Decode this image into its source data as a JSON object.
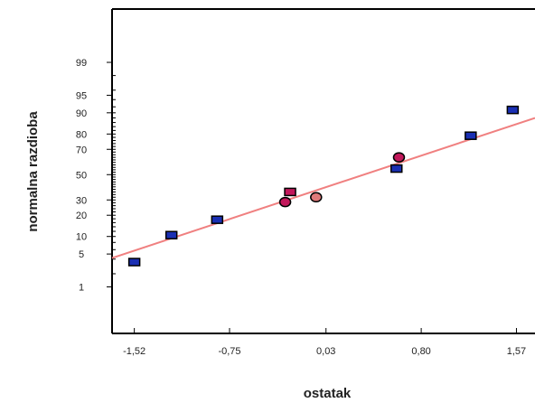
{
  "chart_data": {
    "type": "scatter",
    "title": "",
    "xlabel": "ostatak",
    "ylabel": "normalna razdioba",
    "x_ticks": [
      {
        "value": -1.52,
        "label": "-1,52"
      },
      {
        "value": -0.75,
        "label": "-0,75"
      },
      {
        "value": 0.03,
        "label": "0,03"
      },
      {
        "value": 0.8,
        "label": "0,80"
      },
      {
        "value": 1.57,
        "label": "1,57"
      }
    ],
    "y_ticks": [
      {
        "value": 1,
        "label": "1"
      },
      {
        "value": 5,
        "label": "5"
      },
      {
        "value": 10,
        "label": "10"
      },
      {
        "value": 20,
        "label": "20"
      },
      {
        "value": 30,
        "label": "30"
      },
      {
        "value": 50,
        "label": "50"
      },
      {
        "value": 70,
        "label": "70"
      },
      {
        "value": 80,
        "label": "80"
      },
      {
        "value": 90,
        "label": "90"
      },
      {
        "value": 95,
        "label": "95"
      },
      {
        "value": 99,
        "label": "99"
      }
    ],
    "x_scale": "linear",
    "y_scale": "normal-probability",
    "xlim": [
      -1.7,
      1.72
    ],
    "ylim": [
      0.05,
      99.97
    ],
    "grid": false,
    "points": [
      {
        "x": -1.52,
        "y": 3.5,
        "marker": "square",
        "color": "#1a2fb3"
      },
      {
        "x": -1.22,
        "y": 10.5,
        "marker": "square",
        "color": "#1a2fb3"
      },
      {
        "x": -0.85,
        "y": 17.5,
        "marker": "square",
        "color": "#1a2fb3"
      },
      {
        "x": -0.26,
        "y": 36.0,
        "marker": "square",
        "color": "#c2185b"
      },
      {
        "x": -0.3,
        "y": 28.5,
        "marker": "circle",
        "color": "#c2185b"
      },
      {
        "x": -0.05,
        "y": 32.0,
        "marker": "circle",
        "color": "#e07a7a"
      },
      {
        "x": 0.6,
        "y": 55.0,
        "marker": "square",
        "color": "#1a2fb3"
      },
      {
        "x": 0.62,
        "y": 64.0,
        "marker": "circle",
        "color": "#c2185b"
      },
      {
        "x": 1.2,
        "y": 79.0,
        "marker": "square",
        "color": "#1a2fb3"
      },
      {
        "x": 1.54,
        "y": 91.0,
        "marker": "square",
        "color": "#1a2fb3"
      }
    ],
    "fit_line": {
      "from": {
        "x": -1.7,
        "y": 4.2
      },
      "to": {
        "x": 1.72,
        "y": 88.0
      },
      "color": "#f08080"
    }
  }
}
